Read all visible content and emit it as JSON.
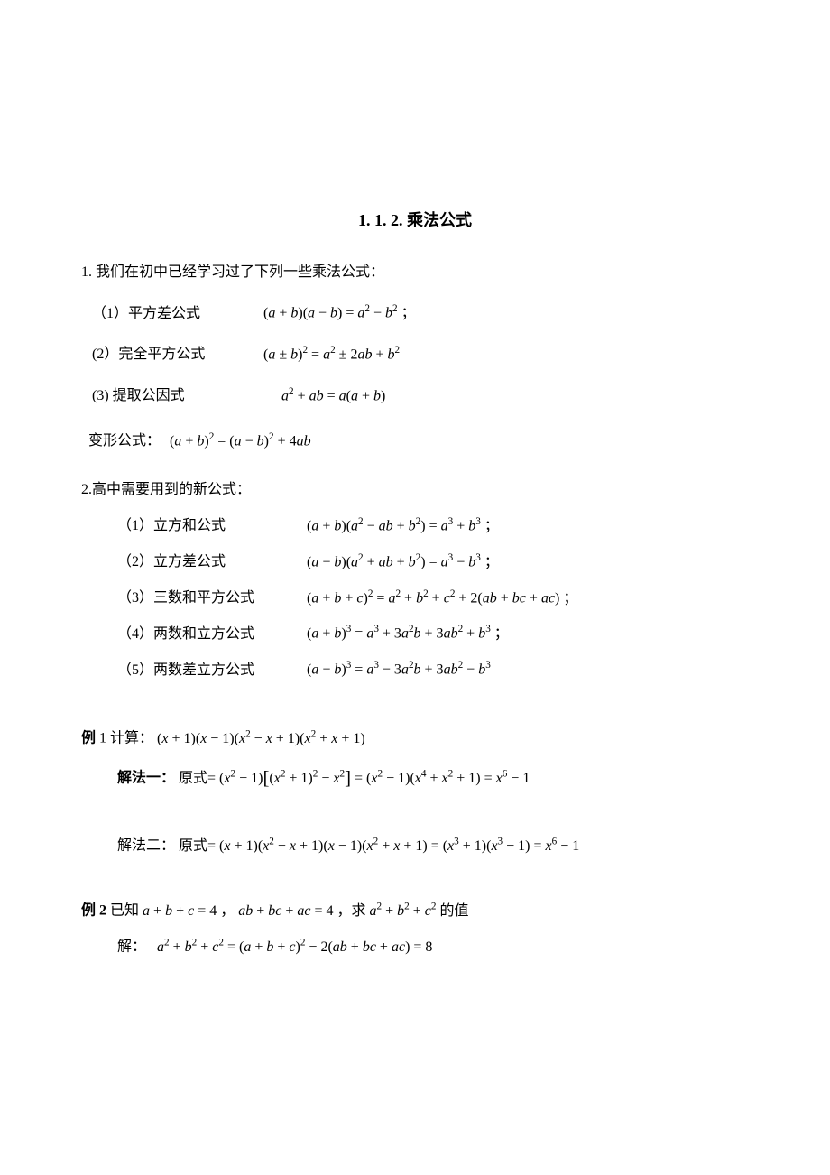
{
  "title": "1. 1. 2.  乘法公式",
  "intro1": "1. 我们在初中已经学习过了下列一些乘法公式：",
  "s1r1_label": "（1）平方差公式",
  "s1r1_math": "(<span class='it'>a</span> + <span class='it'>b</span>)(<span class='it'>a</span> − <span class='it'>b</span>) = <span class='it'>a</span><sup>2</sup> − <span class='it'>b</span><sup>2</sup> ；",
  "s1r2_label": "(2）完全平方公式",
  "s1r2_math": "(<span class='it'>a</span> ± <span class='it'>b</span>)<sup>2</sup> = <span class='it'>a</span><sup>2</sup> ± 2<span class='it'>ab</span> + <span class='it'>b</span><sup>2</sup>",
  "s1r3_label": "(3)  提取公因式",
  "s1r3_math": "<span class='it'>a</span><sup>2</sup> + <span class='it'>ab</span> = <span class='it'>a</span>(<span class='it'>a</span> + <span class='it'>b</span>)",
  "variant_label": " 变形公式：",
  "variant_math": "(<span class='it'>a</span> + <span class='it'>b</span>)<sup>2</sup> = (<span class='it'>a</span> − <span class='it'>b</span>)<sup>2</sup> + 4<span class='it'>ab</span>",
  "intro2": "2.高中需要用到的新公式：",
  "s2r1_label": "（1）立方和公式",
  "s2r1_math": "(<span class='it'>a</span> + <span class='it'>b</span>)(<span class='it'>a</span><sup>2</sup> − <span class='it'>ab</span> + <span class='it'>b</span><sup>2</sup>) = <span class='it'>a</span><sup>3</sup> + <span class='it'>b</span><sup>3</sup> ；",
  "s2r2_label": "（2）立方差公式",
  "s2r2_math": "(<span class='it'>a</span> − <span class='it'>b</span>)(<span class='it'>a</span><sup>2</sup> + <span class='it'>ab</span> + <span class='it'>b</span><sup>2</sup>) = <span class='it'>a</span><sup>3</sup> − <span class='it'>b</span><sup>3</sup> ；",
  "s2r3_label": "（3）三数和平方公式",
  "s2r3_math": "(<span class='it'>a</span> + <span class='it'>b</span> + <span class='it'>c</span>)<sup>2</sup> = <span class='it'>a</span><sup>2</sup> + <span class='it'>b</span><sup>2</sup> + <span class='it'>c</span><sup>2</sup> + 2(<span class='it'>ab</span> + <span class='it'>bc</span> + <span class='it'>ac</span>) ；",
  "s2r4_label": "（4）两数和立方公式",
  "s2r4_math": "(<span class='it'>a</span> + <span class='it'>b</span>)<sup>3</sup> = <span class='it'>a</span><sup>3</sup> + 3<span class='it'>a</span><sup>2</sup><span class='it'>b</span> + 3<span class='it'>ab</span><sup>2</sup> + <span class='it'>b</span><sup>3</sup> ；",
  "s2r5_label": "（5）两数差立方公式",
  "s2r5_math": "(<span class='it'>a</span> − <span class='it'>b</span>)<sup>3</sup> = <span class='it'>a</span><sup>3</sup> − 3<span class='it'>a</span><sup>2</sup><span class='it'>b</span> + 3<span class='it'>ab</span><sup>2</sup> − <span class='it'>b</span><sup>3</sup>",
  "ex1_head_bold": "例",
  "ex1_head_rest": " 1   计算：",
  "ex1_expr": "(<span class='it'>x</span> + 1)(<span class='it'>x</span> − 1)(<span class='it'>x</span><sup>2</sup> − <span class='it'>x</span> + 1)(<span class='it'>x</span><sup>2</sup> + <span class='it'>x</span> + 1)",
  "ex1_sol1_label": "解法一：",
  "ex1_sol1_math": "原式= (<span class='it'>x</span><sup>2</sup> − 1)<span class='lbrack'>[</span>(<span class='it'>x</span><sup>2</sup> + 1)<sup>2</sup> − <span class='it'>x</span><sup>2</sup><span class='rbrack'>]</span> = (<span class='it'>x</span><sup>2</sup> − 1)(<span class='it'>x</span><sup>4</sup> + <span class='it'>x</span><sup>2</sup> + 1) = <span class='it'>x</span><sup>6</sup> − 1",
  "ex1_sol2_label": "解法二：",
  "ex1_sol2_math": "原式= (<span class='it'>x</span> + 1)(<span class='it'>x</span><sup>2</sup> − <span class='it'>x</span> + 1)(<span class='it'>x</span> − 1)(<span class='it'>x</span><sup>2</sup> + <span class='it'>x</span> + 1) = (<span class='it'>x</span><sup>3</sup> + 1)(<span class='it'>x</span><sup>3</sup> − 1) = <span class='it'>x</span><sup>6</sup> − 1",
  "ex2_head_bold": "例 2",
  "ex2_head_rest": "   已知",
  "ex2_cond": " <span class='it'>a</span> + <span class='it'>b</span> + <span class='it'>c</span> = 4 ， <span class='it'>ab</span> + <span class='it'>bc</span> + <span class='it'>ac</span> = 4 ，求 <span class='it'>a</span><sup>2</sup> + <span class='it'>b</span><sup>2</sup> + <span class='it'>c</span><sup>2</sup> 的值",
  "ex2_sol_label": "解：",
  "ex2_sol_math": "<span class='it'>a</span><sup>2</sup> + <span class='it'>b</span><sup>2</sup> + <span class='it'>c</span><sup>2</sup> = (<span class='it'>a</span> + <span class='it'>b</span> + <span class='it'>c</span>)<sup>2</sup> − 2(<span class='it'>ab</span> + <span class='it'>bc</span> + <span class='it'>ac</span>) = 8"
}
